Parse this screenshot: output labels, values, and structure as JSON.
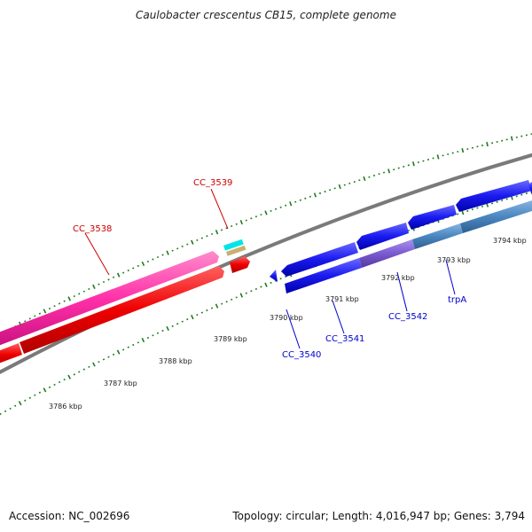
{
  "title": "Caulobacter crescentus CB15, complete genome",
  "footer": {
    "accession": "Accession: NC_002696",
    "summary": "Topology: circular; Length: 4,016,947 bp; Genes: 3,794"
  },
  "scale_labels": [
    {
      "label": "3786 kbp",
      "pos": 3786
    },
    {
      "label": "3787 kbp",
      "pos": 3787
    },
    {
      "label": "3788 kbp",
      "pos": 3788
    },
    {
      "label": "3789 kbp",
      "pos": 3789
    },
    {
      "label": "3790 kbp",
      "pos": 3790
    },
    {
      "label": "3791 kbp",
      "pos": 3791
    },
    {
      "label": "3792 kbp",
      "pos": 3792
    },
    {
      "label": "3793 kbp",
      "pos": 3793
    },
    {
      "label": "3794 kbp",
      "pos": 3794
    }
  ],
  "gene_labels": [
    {
      "name": "CC_3538",
      "strand": "upper",
      "color": "#cc0000"
    },
    {
      "name": "CC_3539",
      "strand": "upper",
      "color": "#cc0000"
    },
    {
      "name": "CC_3540",
      "strand": "lower",
      "color": "#0000cc"
    },
    {
      "name": "CC_3541",
      "strand": "lower",
      "color": "#0000cc"
    },
    {
      "name": "CC_3542",
      "strand": "lower",
      "color": "#0000cc"
    },
    {
      "name": "trpA",
      "strand": "lower",
      "color": "#0000cc"
    }
  ],
  "colors": {
    "backbone": "#7a7a7a",
    "tick": "#1f7a1f",
    "forward_gene": "#ee0000",
    "forward_feature": "#ff2fa8",
    "reverse_gene": "#1a1af0",
    "reverse_feature_1": "#7a5ad0",
    "reverse_feature_2": "#4a86c0",
    "small_feature_1": "#00e5e5",
    "small_feature_2": "#c8b070"
  }
}
